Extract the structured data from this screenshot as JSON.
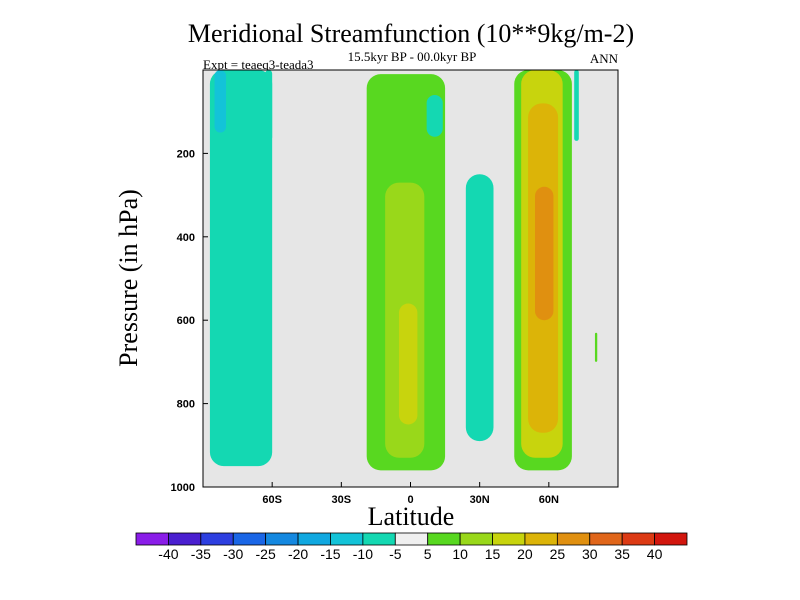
{
  "chart_data": {
    "type": "heatmap",
    "title": "Meridional Streamfunction (10**9kg/m-2)",
    "subtitle_center": "15.5kyr BP - 00.0kyr BP",
    "subtitle_left": "Expt = teaeq3-teada3",
    "subtitle_right": "ANN",
    "xlabel": "Latitude",
    "ylabel": "Pressure (in hPa)",
    "x_ticks": [
      "60S",
      "30S",
      "0",
      "30N",
      "60N"
    ],
    "x_tick_values": [
      -60,
      -30,
      0,
      30,
      60
    ],
    "xlim": [
      -90,
      90
    ],
    "y_ticks": [
      "200",
      "400",
      "600",
      "800",
      "1000"
    ],
    "y_tick_values": [
      200,
      400,
      600,
      800,
      1000
    ],
    "ylim": [
      0,
      1000
    ],
    "background_color": "#e6e6e6",
    "colorbar": {
      "levels": [
        "-40",
        "-35",
        "-30",
        "-25",
        "-20",
        "-15",
        "-10",
        "-5",
        "5",
        "10",
        "15",
        "20",
        "25",
        "30",
        "35",
        "40"
      ],
      "colors": [
        "#8a1de8",
        "#4a1fd0",
        "#2d3fe0",
        "#1a66e6",
        "#1488e0",
        "#10a8e0",
        "#13c3d8",
        "#14d8b2",
        "#f0f0f0",
        "#58d820",
        "#99d81a",
        "#c8d40d",
        "#dcb408",
        "#e09010",
        "#e0661a",
        "#dc3a14",
        "#d2160e"
      ]
    },
    "regions": [
      {
        "name": "sh-polar-cell-outer",
        "value": -10,
        "lat": [
          -87,
          -60
        ],
        "p": [
          0,
          950
        ]
      },
      {
        "name": "sh-polar-cell-core",
        "value": -15,
        "lat": [
          -85,
          -80
        ],
        "p": [
          0,
          150
        ]
      },
      {
        "name": "sh-polar-strip",
        "value": -10,
        "lat": [
          -63,
          -60
        ],
        "p": [
          0,
          170
        ]
      },
      {
        "name": "tropical-cell-outer",
        "value": 5,
        "lat": [
          -19,
          15
        ],
        "p": [
          10,
          960
        ]
      },
      {
        "name": "tropical-cell-inner",
        "value": 10,
        "lat": [
          -11,
          6
        ],
        "p": [
          270,
          930
        ]
      },
      {
        "name": "tropical-cell-core",
        "value": 15,
        "lat": [
          -5,
          3
        ],
        "p": [
          560,
          850
        ]
      },
      {
        "name": "nh-tropics-patch",
        "value": -10,
        "lat": [
          7,
          14
        ],
        "p": [
          60,
          160
        ]
      },
      {
        "name": "nh-subtropics-cell",
        "value": -10,
        "lat": [
          24,
          36
        ],
        "p": [
          250,
          890
        ]
      },
      {
        "name": "nh-ferrel-cell-outer",
        "value": 5,
        "lat": [
          45,
          70
        ],
        "p": [
          0,
          960
        ]
      },
      {
        "name": "nh-ferrel-cell-inner",
        "value": 15,
        "lat": [
          48,
          66
        ],
        "p": [
          0,
          930
        ]
      },
      {
        "name": "nh-ferrel-cell-core",
        "value": 20,
        "lat": [
          51,
          64
        ],
        "p": [
          80,
          870
        ]
      },
      {
        "name": "nh-ferrel-cell-peak",
        "value": 25,
        "lat": [
          54,
          62
        ],
        "p": [
          280,
          600
        ]
      },
      {
        "name": "nh-polar-strip",
        "value": -10,
        "lat": [
          71,
          73
        ],
        "p": [
          0,
          170
        ]
      },
      {
        "name": "nh-polar-blip",
        "value": 5,
        "lat": [
          80,
          81
        ],
        "p": [
          630,
          700
        ]
      }
    ]
  }
}
